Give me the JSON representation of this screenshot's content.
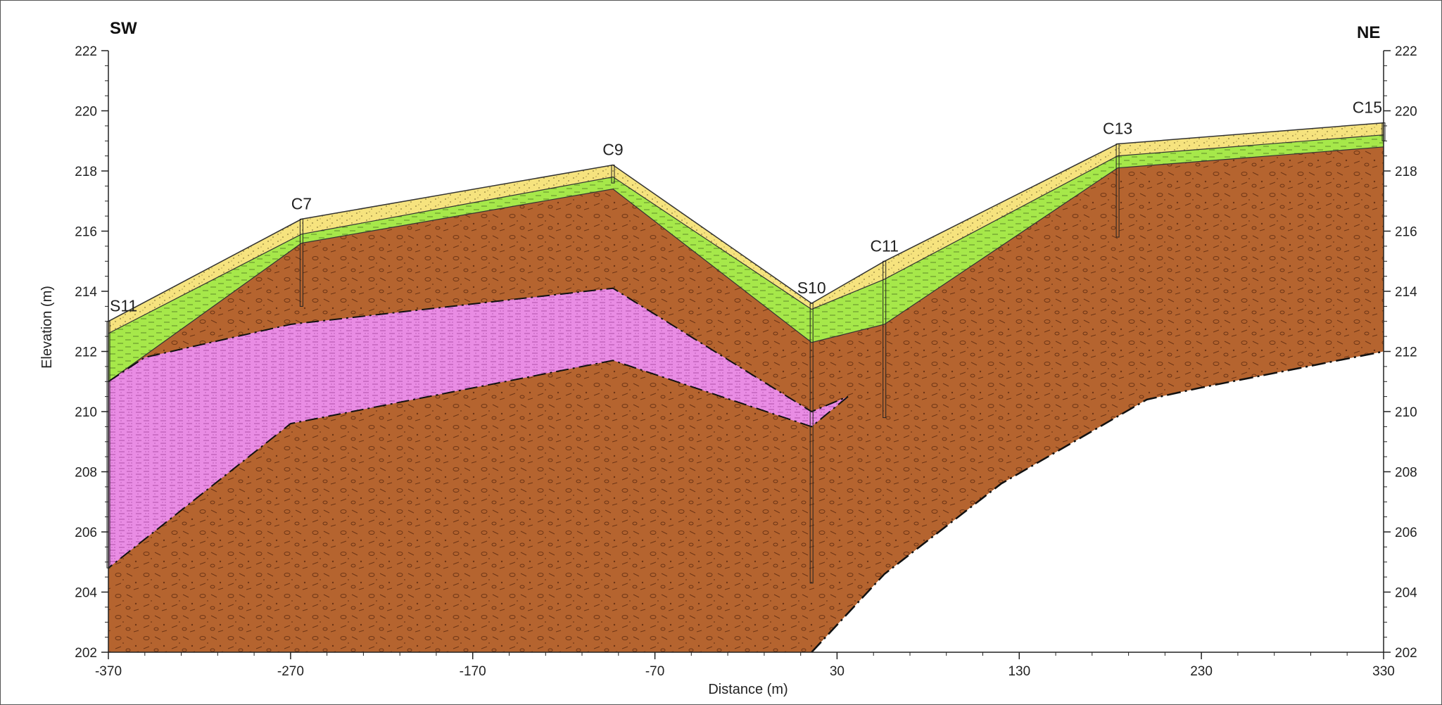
{
  "chart_data": {
    "type": "area",
    "title": "",
    "xlabel": "Distance (m)",
    "ylabel": "Elevation (m)",
    "xlim": [
      -370,
      330
    ],
    "ylim": [
      202,
      222
    ],
    "x_ticks": [
      -370,
      -270,
      -170,
      -70,
      30,
      130,
      230,
      330
    ],
    "y_ticks": [
      202,
      204,
      206,
      208,
      210,
      212,
      214,
      216,
      218,
      220,
      222
    ],
    "orientation": {
      "left": "SW",
      "right": "NE"
    },
    "colors": {
      "topsoil": "#f6e37e",
      "upper_layer": "#a6e84a",
      "main_layer": "#b5642f",
      "lens": "#e98ce4",
      "background": "#ffffff"
    },
    "boreholes": [
      {
        "name": "S11",
        "x": -370,
        "top": 213.0,
        "bottom": 204.8
      },
      {
        "name": "C7",
        "x": -264,
        "top": 216.4,
        "bottom": 213.5
      },
      {
        "name": "C9",
        "x": -93,
        "top": 218.2,
        "bottom": 217.6
      },
      {
        "name": "S10",
        "x": 16,
        "top": 213.6,
        "bottom": 204.3
      },
      {
        "name": "C11",
        "x": 56,
        "top": 215.0,
        "bottom": 209.8
      },
      {
        "name": "C13",
        "x": 184,
        "top": 218.9,
        "bottom": 215.8
      },
      {
        "name": "C15",
        "x": 330,
        "top": 219.6,
        "bottom": 219.0
      }
    ],
    "horizons": {
      "ground_surface": [
        [
          -370,
          213.0
        ],
        [
          -264,
          216.4
        ],
        [
          -93,
          218.2
        ],
        [
          16,
          213.6
        ],
        [
          56,
          215.0
        ],
        [
          184,
          218.9
        ],
        [
          330,
          219.6
        ]
      ],
      "topsoil_base": [
        [
          -370,
          212.6
        ],
        [
          -264,
          215.9
        ],
        [
          -93,
          217.8
        ],
        [
          16,
          213.4
        ],
        [
          56,
          214.4
        ],
        [
          184,
          218.5
        ],
        [
          330,
          219.2
        ]
      ],
      "upper_layer_base": [
        [
          -370,
          211.0
        ],
        [
          -264,
          215.6
        ],
        [
          -93,
          217.4
        ],
        [
          16,
          212.3
        ],
        [
          56,
          212.9
        ],
        [
          184,
          218.1
        ],
        [
          330,
          218.8
        ]
      ],
      "lens_top": [
        [
          -370,
          211.0
        ],
        [
          -350,
          211.8
        ],
        [
          -270,
          212.9
        ],
        [
          -93,
          214.1
        ],
        [
          16,
          210.0
        ],
        [
          36,
          210.5
        ]
      ],
      "lens_base": [
        [
          36,
          210.5
        ],
        [
          16,
          209.5
        ],
        [
          -93,
          211.7
        ],
        [
          -270,
          209.6
        ],
        [
          -370,
          204.8
        ]
      ],
      "main_layer_base": [
        [
          16,
          202.0
        ],
        [
          56,
          204.6
        ],
        [
          120,
          207.6
        ],
        [
          200,
          210.4
        ],
        [
          230,
          210.8
        ],
        [
          330,
          212.0
        ]
      ]
    }
  }
}
